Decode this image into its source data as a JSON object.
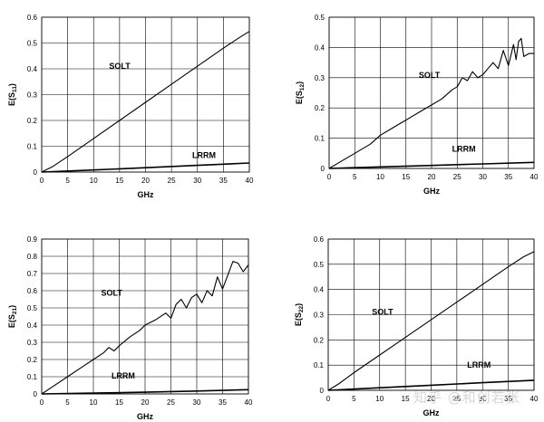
{
  "watermark": "知乎 @和创若张",
  "chart_data": [
    {
      "type": "line",
      "xlabel": "GHz",
      "ylabel": "E(S11)",
      "xlim": [
        0,
        40
      ],
      "ylim": [
        0,
        0.6
      ],
      "xticks": [
        0,
        5,
        10,
        15,
        20,
        25,
        30,
        35,
        40
      ],
      "yticks": [
        0,
        0.1,
        0.2,
        0.3,
        0.4,
        0.5,
        0.6
      ],
      "grid": true,
      "series": [
        {
          "name": "SOLT",
          "x": [
            0,
            2,
            5,
            10,
            15,
            20,
            25,
            30,
            35,
            38,
            40
          ],
          "y": [
            0,
            0.02,
            0.06,
            0.13,
            0.2,
            0.27,
            0.34,
            0.41,
            0.48,
            0.52,
            0.545
          ],
          "label_at": [
            13,
            0.4
          ]
        },
        {
          "name": "LRRM",
          "x": [
            0,
            10,
            20,
            30,
            40
          ],
          "y": [
            0,
            0.008,
            0.017,
            0.026,
            0.035
          ],
          "label_at": [
            29,
            0.055
          ]
        }
      ]
    },
    {
      "type": "line",
      "xlabel": "GHz",
      "ylabel": "E(S12)",
      "xlim": [
        0,
        40
      ],
      "ylim": [
        0,
        0.5
      ],
      "xticks": [
        0,
        5,
        10,
        15,
        20,
        25,
        30,
        35,
        40
      ],
      "yticks": [
        0,
        0.1,
        0.2,
        0.3,
        0.4,
        0.5
      ],
      "grid": true,
      "series": [
        {
          "name": "SOLT",
          "x": [
            0,
            2,
            5,
            8,
            10,
            12,
            14,
            15,
            16,
            18,
            20,
            22,
            24,
            25,
            26,
            27,
            28,
            29,
            30,
            31,
            32,
            33,
            34,
            35,
            36,
            36.5,
            37,
            37.5,
            38,
            39,
            40
          ],
          "y": [
            0,
            0.02,
            0.05,
            0.08,
            0.11,
            0.13,
            0.15,
            0.16,
            0.17,
            0.19,
            0.21,
            0.23,
            0.26,
            0.27,
            0.3,
            0.29,
            0.32,
            0.3,
            0.31,
            0.33,
            0.35,
            0.33,
            0.39,
            0.34,
            0.41,
            0.36,
            0.42,
            0.43,
            0.37,
            0.38,
            0.38
          ],
          "label_at": [
            17.5,
            0.3
          ]
        },
        {
          "name": "LRRM",
          "x": [
            0,
            10,
            20,
            30,
            40
          ],
          "y": [
            0,
            0.005,
            0.01,
            0.015,
            0.02
          ],
          "label_at": [
            24,
            0.055
          ]
        }
      ]
    },
    {
      "type": "line",
      "xlabel": "GHz",
      "ylabel": "E(S21)",
      "xlim": [
        0,
        40
      ],
      "ylim": [
        0,
        0.9
      ],
      "xticks": [
        0,
        5,
        10,
        15,
        20,
        25,
        30,
        35,
        40
      ],
      "yticks": [
        0,
        0.1,
        0.2,
        0.3,
        0.4,
        0.5,
        0.6,
        0.7,
        0.8,
        0.9
      ],
      "grid": true,
      "series": [
        {
          "name": "SOLT",
          "x": [
            0,
            2,
            5,
            8,
            10,
            12,
            13,
            14,
            15,
            17,
            19,
            20,
            22,
            24,
            25,
            26,
            27,
            28,
            29,
            30,
            31,
            32,
            33,
            34,
            35,
            36,
            37,
            38,
            39,
            40
          ],
          "y": [
            0,
            0.04,
            0.1,
            0.16,
            0.2,
            0.24,
            0.27,
            0.25,
            0.28,
            0.33,
            0.37,
            0.4,
            0.43,
            0.47,
            0.44,
            0.52,
            0.55,
            0.5,
            0.56,
            0.58,
            0.53,
            0.6,
            0.57,
            0.68,
            0.61,
            0.69,
            0.77,
            0.76,
            0.71,
            0.75
          ],
          "label_at": [
            11.5,
            0.57
          ]
        },
        {
          "name": "LRRM",
          "x": [
            0,
            10,
            20,
            30,
            40
          ],
          "y": [
            0,
            0.005,
            0.01,
            0.017,
            0.025
          ],
          "label_at": [
            13.5,
            0.09
          ]
        }
      ]
    },
    {
      "type": "line",
      "xlabel": "GHz",
      "ylabel": "E(S22)",
      "xlim": [
        0,
        40
      ],
      "ylim": [
        0,
        0.6
      ],
      "xticks": [
        0,
        5,
        10,
        15,
        20,
        25,
        30,
        35,
        40
      ],
      "yticks": [
        0,
        0.1,
        0.2,
        0.3,
        0.4,
        0.5,
        0.6
      ],
      "grid": true,
      "series": [
        {
          "name": "SOLT",
          "x": [
            0,
            2,
            5,
            10,
            15,
            20,
            25,
            30,
            35,
            38,
            40
          ],
          "y": [
            0,
            0.025,
            0.07,
            0.14,
            0.21,
            0.28,
            0.35,
            0.42,
            0.49,
            0.53,
            0.55
          ],
          "label_at": [
            8.5,
            0.3
          ]
        },
        {
          "name": "LRRM",
          "x": [
            0,
            10,
            20,
            30,
            40
          ],
          "y": [
            0,
            0.01,
            0.02,
            0.03,
            0.04
          ],
          "label_at": [
            27,
            0.09
          ]
        }
      ]
    }
  ]
}
